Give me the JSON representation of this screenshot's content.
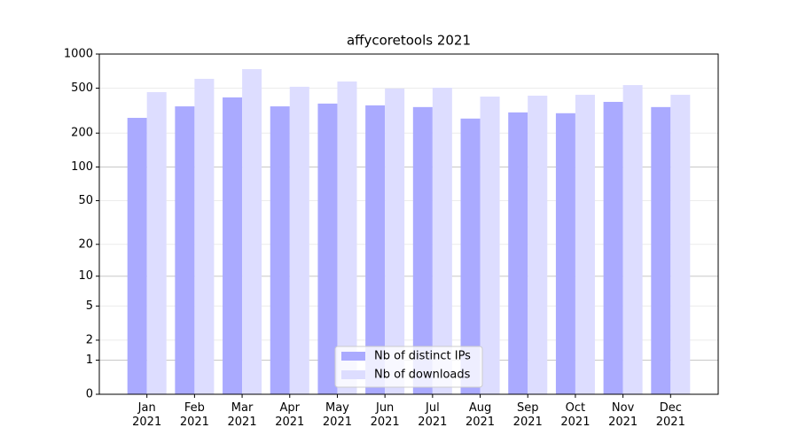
{
  "chart_data": {
    "type": "bar",
    "title": "affycoretools 2021",
    "yscale": "log1p",
    "categories": [
      "Jan\n2021",
      "Feb\n2021",
      "Mar\n2021",
      "Apr\n2021",
      "May\n2021",
      "Jun\n2021",
      "Jul\n2021",
      "Aug\n2021",
      "Sep\n2021",
      "Oct\n2021",
      "Nov\n2021",
      "Dec\n2021"
    ],
    "series": [
      {
        "name": "Nb of distinct IPs",
        "color": "#aaaaff",
        "values": [
          273,
          345,
          414,
          345,
          365,
          352,
          340,
          269,
          305,
          300,
          378,
          340
        ]
      },
      {
        "name": "Nb of downloads",
        "color": "#ddddff",
        "values": [
          461,
          604,
          736,
          514,
          572,
          496,
          504,
          421,
          429,
          437,
          532,
          437
        ]
      }
    ],
    "ylim": [
      0,
      1000
    ],
    "yticks": [
      0,
      1,
      2,
      5,
      10,
      20,
      50,
      100,
      200,
      500,
      1000
    ],
    "grid": true,
    "legend": "lower center"
  }
}
